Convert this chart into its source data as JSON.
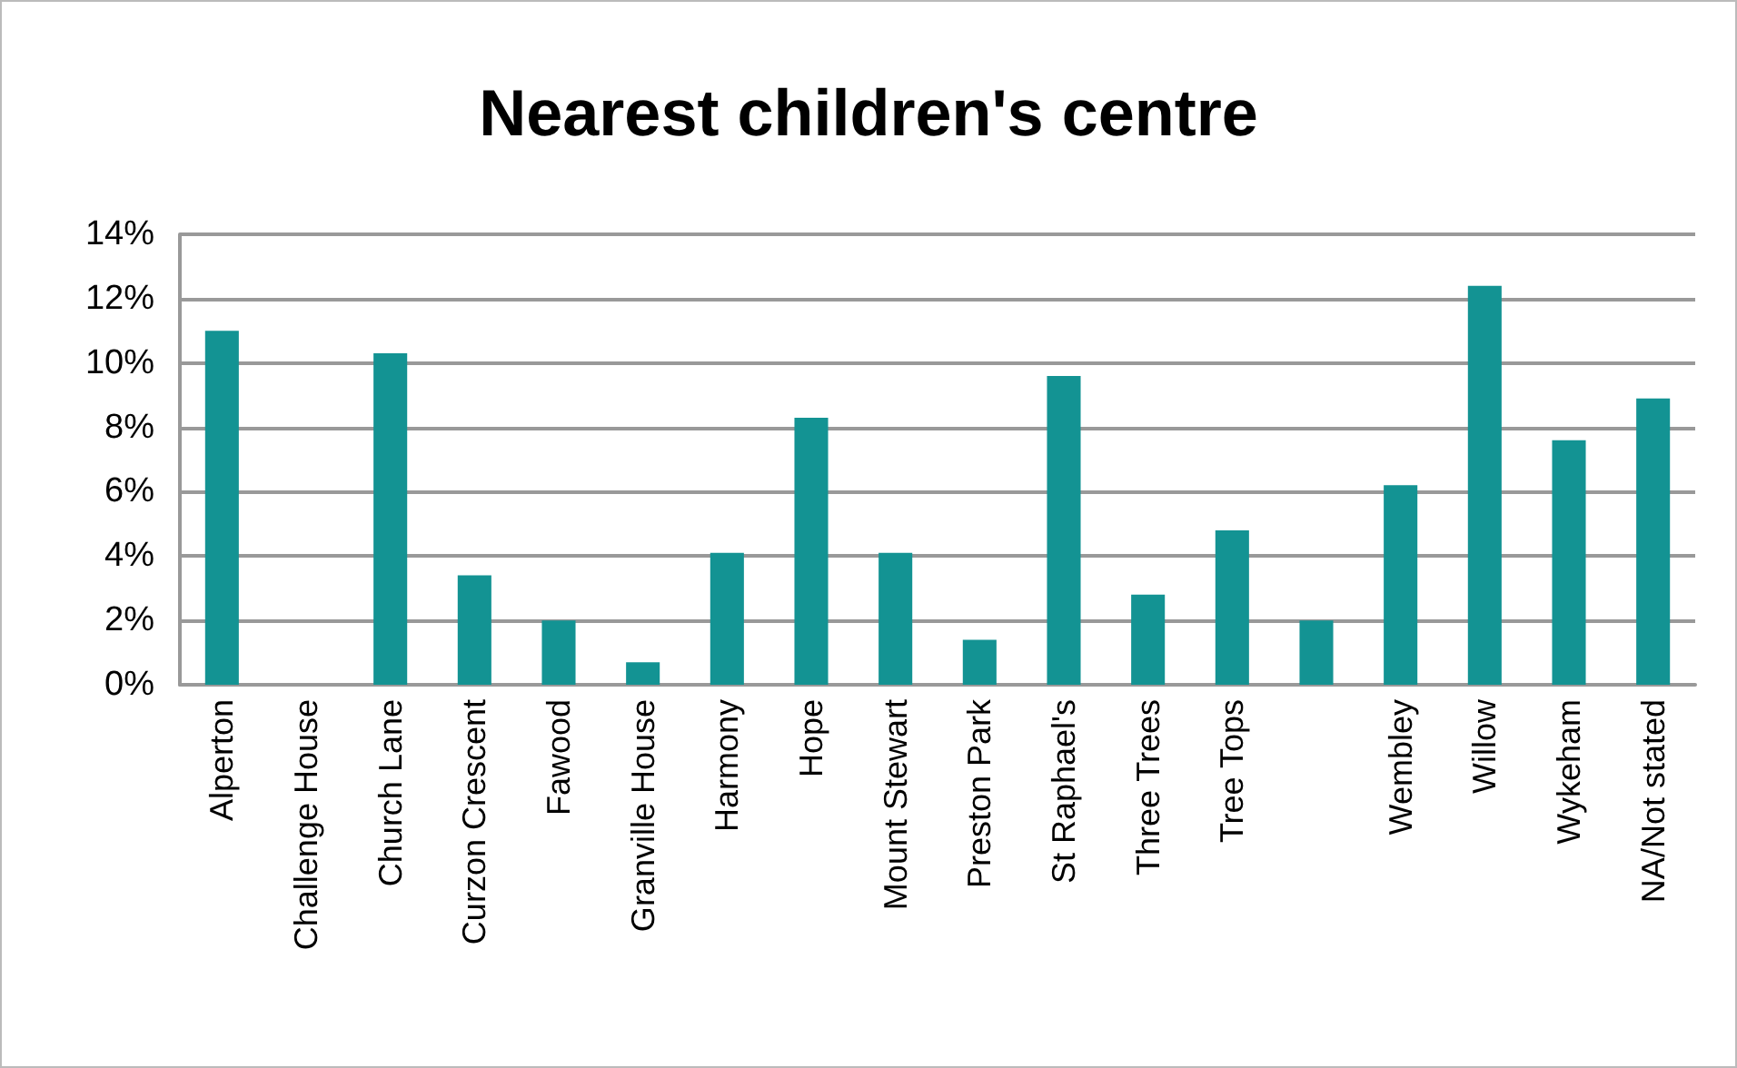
{
  "chart_data": {
    "type": "bar",
    "title": "Nearest children's centre",
    "categories": [
      "Alperton",
      "Challenge House",
      "Church Lane",
      "Curzon Crescent",
      "Fawood",
      "Granville House",
      "Harmony",
      "Hope",
      "Mount Stewart",
      "Preston Park",
      "St Raphael's",
      "Three Trees",
      "Tree Tops",
      null,
      "Wembley",
      "Willow",
      "Wykeham",
      "NA/Not stated"
    ],
    "values": [
      11.0,
      0,
      10.3,
      3.4,
      2.0,
      0.7,
      4.1,
      8.3,
      4.1,
      1.4,
      9.6,
      2.8,
      4.8,
      2.0,
      6.2,
      12.4,
      7.6,
      8.9
    ],
    "color": "#139393",
    "ylim": [
      0,
      14
    ],
    "yticks": [
      {
        "value": 0,
        "label": "0%"
      },
      {
        "value": 2,
        "label": "2%"
      },
      {
        "value": 4,
        "label": "4%"
      },
      {
        "value": 6,
        "label": "6%"
      },
      {
        "value": 8,
        "label": "8%"
      },
      {
        "value": 10,
        "label": "10%"
      },
      {
        "value": 12,
        "label": "12%"
      },
      {
        "value": 14,
        "label": "14%"
      }
    ],
    "grid": "y"
  }
}
